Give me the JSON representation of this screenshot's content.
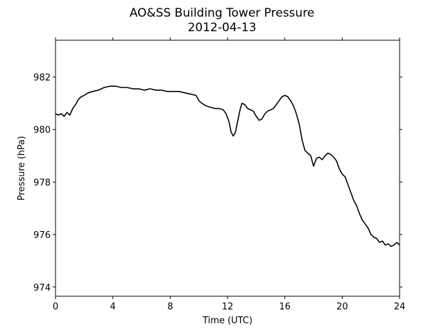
{
  "chart_data": {
    "type": "line",
    "title": "AO&SS Building Tower Pressure",
    "subtitle": "2012-04-13",
    "xlabel": "Time (UTC)",
    "ylabel": "Pressure (hPa)",
    "xlim": [
      0,
      24
    ],
    "ylim": [
      973.65,
      983.4
    ],
    "xticks": [
      0,
      4,
      8,
      12,
      16,
      20,
      24
    ],
    "yticks": [
      974,
      976,
      978,
      980,
      982
    ],
    "grid": false,
    "line_color": "#000000",
    "series": [
      {
        "x": [
          0,
          0.2,
          0.4,
          0.6,
          0.8,
          1.0,
          1.2,
          1.4,
          1.6,
          1.8,
          2.0,
          2.3,
          2.6,
          3.0,
          3.4,
          3.8,
          4.2,
          4.6,
          5.0,
          5.4,
          5.8,
          6.2,
          6.6,
          7.0,
          7.4,
          7.8,
          8.2,
          8.6,
          9.0,
          9.4,
          9.8,
          10.0,
          10.2,
          10.5,
          10.8,
          11.1,
          11.4,
          11.7,
          11.9,
          12.1,
          12.25,
          12.4,
          12.55,
          12.7,
          12.85,
          13.0,
          13.2,
          13.4,
          13.6,
          13.8,
          14.0,
          14.2,
          14.4,
          14.6,
          14.8,
          15.0,
          15.2,
          15.4,
          15.6,
          15.8,
          16.0,
          16.2,
          16.4,
          16.6,
          16.8,
          17.0,
          17.2,
          17.4,
          17.6,
          17.8,
          18.0,
          18.2,
          18.4,
          18.6,
          18.8,
          19.0,
          19.2,
          19.4,
          19.6,
          19.8,
          20.0,
          20.2,
          20.4,
          20.6,
          20.8,
          21.0,
          21.2,
          21.4,
          21.6,
          21.8,
          22.0,
          22.2,
          22.4,
          22.6,
          22.8,
          23.0,
          23.2,
          23.4,
          23.6,
          23.8,
          24.0
        ],
        "values": [
          980.6,
          980.55,
          980.6,
          980.5,
          980.65,
          980.55,
          980.8,
          980.95,
          981.15,
          981.25,
          981.3,
          981.4,
          981.45,
          981.5,
          981.6,
          981.65,
          981.65,
          981.6,
          981.6,
          981.55,
          981.55,
          981.5,
          981.55,
          981.5,
          981.5,
          981.45,
          981.45,
          981.45,
          981.4,
          981.35,
          981.3,
          981.1,
          981.0,
          980.9,
          980.85,
          980.8,
          980.8,
          980.75,
          980.6,
          980.3,
          979.9,
          979.75,
          979.9,
          980.3,
          980.7,
          981.0,
          980.95,
          980.8,
          980.75,
          980.7,
          980.5,
          980.35,
          980.4,
          980.6,
          980.7,
          980.75,
          980.8,
          980.95,
          981.1,
          981.25,
          981.3,
          981.25,
          981.1,
          980.9,
          980.6,
          980.2,
          979.6,
          979.2,
          979.1,
          979.0,
          978.6,
          978.9,
          978.95,
          978.85,
          979.0,
          979.1,
          979.05,
          978.95,
          978.8,
          978.5,
          978.3,
          978.2,
          977.9,
          977.6,
          977.3,
          977.1,
          976.8,
          976.55,
          976.4,
          976.25,
          976.0,
          975.9,
          975.85,
          975.7,
          975.75,
          975.6,
          975.65,
          975.55,
          975.6,
          975.7,
          975.6
        ]
      }
    ]
  }
}
